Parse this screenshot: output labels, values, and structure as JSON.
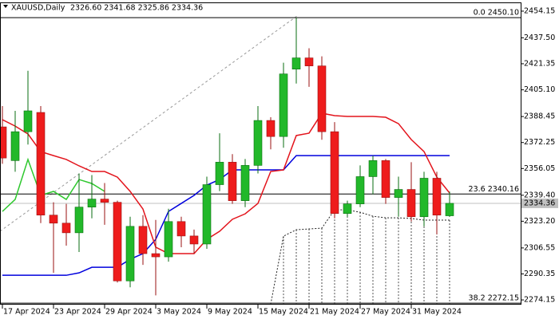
{
  "chart_data": {
    "type": "candlestick",
    "title": "XAUUSD,Daily",
    "header": "2326.60 2341.68 2325.86 2334.36",
    "categories": [
      "17 Apr 2024",
      null,
      null,
      null,
      "23 Apr 2024",
      null,
      null,
      null,
      "29 Apr 2024",
      null,
      null,
      null,
      "3 May 2024",
      null,
      null,
      null,
      "9 May 2024",
      null,
      null,
      null,
      "15 May 2024",
      null,
      null,
      null,
      "21 May 2024",
      null,
      null,
      null,
      "27 May 2024",
      null,
      null,
      null,
      "31 May 2024",
      null,
      null,
      null
    ],
    "open": [
      2382,
      2361,
      2379,
      2391,
      2327,
      2322,
      2316,
      2332,
      2337,
      2335,
      2286,
      2320,
      2303,
      2301,
      2323,
      2314,
      2309,
      2346,
      2360,
      2336,
      2358,
      2386,
      2376,
      2418,
      2425,
      2420,
      2379,
      2328,
      2334,
      2351,
      2361,
      2338,
      2343,
      2326,
      2350,
      2326.6
    ],
    "high": [
      2395,
      2392,
      2417,
      2395,
      2335,
      2334,
      2353,
      2352,
      2347,
      2336,
      2326,
      2327,
      2324,
      2331,
      2326,
      2318,
      2351,
      2378,
      2365,
      2362,
      2395,
      2388,
      2422,
      2450,
      2431,
      2426,
      2385,
      2336,
      2358,
      2364,
      2362,
      2351,
      2360,
      2354,
      2354,
      2341.68
    ],
    "low": [
      2359,
      2354,
      2371,
      2322,
      2291,
      2308,
      2304,
      2325,
      2321,
      2285,
      2282,
      2296,
      2277,
      2298,
      2307,
      2303,
      2306,
      2342,
      2334,
      2332,
      2353,
      2368,
      2369,
      2409,
      2407,
      2374,
      2325,
      2326,
      2332,
      2340,
      2334,
      2326,
      2323,
      2320,
      2315,
      2325.86
    ],
    "close": [
      2362.6,
      2379,
      2392,
      2327,
      2322,
      2316,
      2332,
      2337,
      2335,
      2286,
      2320,
      2303,
      2301,
      2323,
      2314,
      2309,
      2346,
      2360,
      2336,
      2358,
      2386,
      2376,
      2415,
      2425,
      2420,
      2379,
      2328,
      2334,
      2351,
      2361,
      2338,
      2343,
      2326,
      2350,
      2327,
      2334.36
    ],
    "up_color": "#22b82a",
    "down_color": "#ee1c1c",
    "lines": [
      {
        "color": "#0000dd",
        "dashed": false,
        "values": [
          2289.5,
          2289.5,
          2289.5,
          2289.5,
          2289.5,
          2289.5,
          2291,
          2294.5,
          2294.5,
          2294.5,
          2299.5,
          2303,
          2311.9,
          2329.3,
          2334.3,
          2339.3,
          2345.7,
          2349.2,
          2355.2,
          2355.2,
          2355.2,
          2355.2,
          2355.2,
          2364.1,
          2364.1,
          2364.1,
          2364.1,
          2364.1,
          2364.1,
          2364.1,
          2364.1,
          2364.1,
          2364.1,
          2364.1,
          2364.1,
          2364.1
        ]
      },
      {
        "color": "#e3141c",
        "dashed": false,
        "values": [
          2386.5,
          2382.5,
          2377.6,
          2366.6,
          2364.1,
          2361.7,
          2357.7,
          2354.2,
          2354.2,
          2350.7,
          2341.8,
          2330.8,
          2307,
          2303,
          2303,
          2303,
          2311.9,
          2316.9,
          2324.4,
          2327.8,
          2334.3,
          2354.2,
          2355.2,
          2376.6,
          2378.1,
          2390.5,
          2389,
          2388.5,
          2388.5,
          2388.5,
          2388,
          2384,
          2374.1,
          2366.6,
          2350.7,
          2340.8
        ]
      },
      {
        "color": "#2ec82e",
        "dashed": false,
        "values": [
          2329.3,
          2336.8,
          2361.7,
          2339.3,
          2341.8,
          2336.8,
          2349.2,
          2346.7,
          2341.8,
          null,
          null,
          null,
          null,
          null,
          null,
          null,
          null,
          null,
          null,
          null,
          null,
          null,
          null,
          null,
          null,
          null,
          null,
          null,
          null,
          null,
          null,
          null,
          null,
          null,
          null,
          null
        ]
      },
      {
        "color": "#222222",
        "dashed": true,
        "values": [
          null,
          null,
          null,
          null,
          null,
          null,
          null,
          null,
          null,
          null,
          null,
          null,
          null,
          null,
          null,
          null,
          null,
          null,
          null,
          null,
          null,
          2271.5,
          2313.9,
          2317.9,
          2318.4,
          2318.9,
          2330.3,
          2330.3,
          2328.8,
          2326.3,
          2325.3,
          2325.3,
          2324.9,
          2323.9,
          2323.9,
          2323.9
        ]
      }
    ],
    "fib_levels": [
      {
        "value": 2450.1,
        "label": "0.0 2450.10"
      },
      {
        "value": 2340.16,
        "label": "23.6 2340.16"
      },
      {
        "value": 2272.15,
        "label": "38.2 2272.15"
      }
    ],
    "current_price": {
      "value": 2334.36,
      "label": "2334.36"
    },
    "ylim": [
      2271.2,
      2459.6
    ],
    "yticks": [
      2454.15,
      {
        "value": 2437.5,
        "label": "2437.50"
      },
      2421.35,
      {
        "value": 2405.1,
        "label": "2405.10"
      },
      2388.45,
      2372.25,
      2356.05,
      {
        "value": 2339.4,
        "label": "2339.40"
      },
      {
        "value": 2323.2,
        "label": "2323.20"
      },
      2306.55,
      2290.35,
      2274.15
    ]
  }
}
